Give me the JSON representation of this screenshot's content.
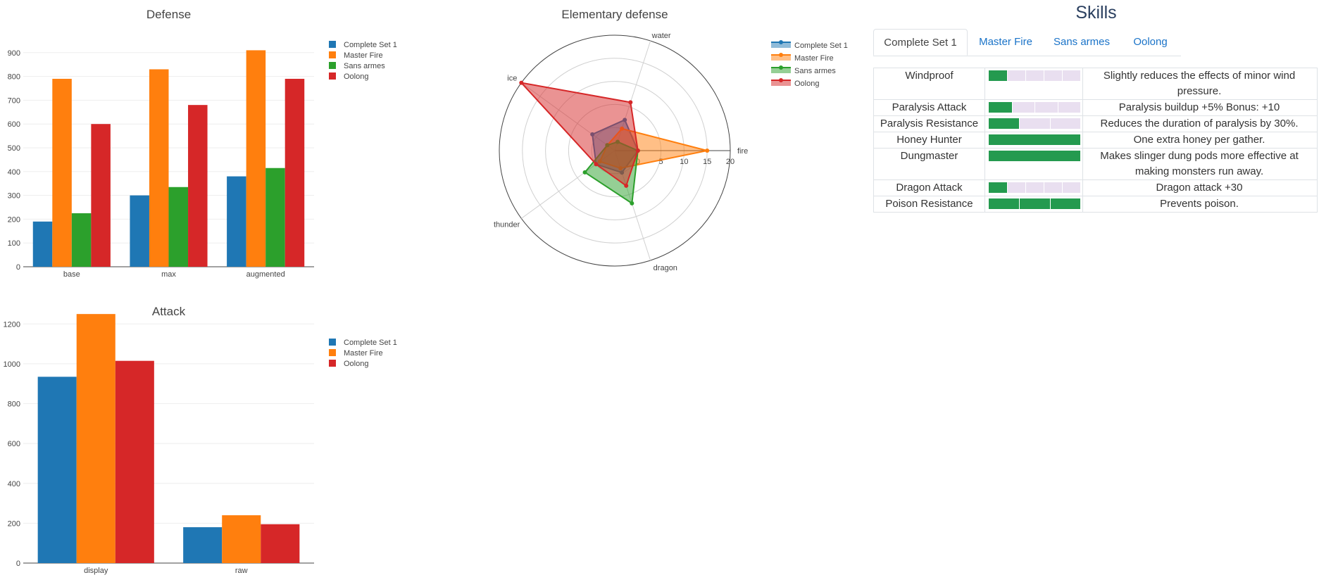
{
  "colors": {
    "Complete Set 1": "#1f77b4",
    "Master Fire": "#ff7f0e",
    "Sans armes": "#2ca02c",
    "Oolong": "#d62728",
    "skill_fill": "#249a4f",
    "skill_empty": "#e9dff0"
  },
  "chart_data": [
    {
      "type": "bar",
      "title": "Defense",
      "categories": [
        "base",
        "max",
        "augmented"
      ],
      "ylim": [
        0,
        1000
      ],
      "yticks": [
        0,
        100,
        200,
        300,
        400,
        500,
        600,
        700,
        800,
        900
      ],
      "legend_position": "top-right",
      "grid": true,
      "series": [
        {
          "name": "Complete Set 1",
          "values": [
            190,
            300,
            380
          ]
        },
        {
          "name": "Master Fire",
          "values": [
            790,
            830,
            910
          ]
        },
        {
          "name": "Sans armes",
          "values": [
            225,
            335,
            415
          ]
        },
        {
          "name": "Oolong",
          "values": [
            600,
            680,
            790
          ]
        }
      ]
    },
    {
      "type": "radar",
      "title": "Elementary defense",
      "axes": [
        "fire",
        "water",
        "ice",
        "thunder",
        "dragon"
      ],
      "rlim": [
        -5,
        20
      ],
      "rticks": [
        0,
        5,
        10,
        15,
        20
      ],
      "legend_position": "top-right",
      "series": [
        {
          "name": "Complete Set 1",
          "values": [
            0,
            2,
            1,
            0,
            0
          ]
        },
        {
          "name": "Master Fire",
          "values": [
            15,
            0,
            -3,
            -1,
            -1
          ]
        },
        {
          "name": "Sans armes",
          "values": [
            0,
            -3,
            -3,
            3,
            7
          ]
        },
        {
          "name": "Oolong",
          "values": [
            0,
            6,
            20,
            0,
            3
          ]
        }
      ]
    },
    {
      "type": "bar",
      "title": "Attack",
      "categories": [
        "display",
        "raw"
      ],
      "ylim": [
        0,
        1300
      ],
      "yticks": [
        0,
        200,
        400,
        600,
        800,
        1000,
        1200
      ],
      "legend_position": "top-right",
      "grid": true,
      "series": [
        {
          "name": "Complete Set 1",
          "values": [
            935,
            180
          ]
        },
        {
          "name": "Master Fire",
          "values": [
            1250,
            240
          ]
        },
        {
          "name": "Oolong",
          "values": [
            1015,
            195
          ]
        }
      ]
    }
  ],
  "skills": {
    "title": "Skills",
    "tabs": [
      "Complete Set 1",
      "Master Fire",
      "Sans armes",
      "Oolong"
    ],
    "active_tab": "Complete Set 1",
    "rows": [
      {
        "name": "Windproof",
        "level": 1,
        "max": 5,
        "description": "Slightly reduces the effects of minor wind pressure."
      },
      {
        "name": "Paralysis Attack",
        "level": 1,
        "max": 4,
        "description": "Paralysis buildup +5% Bonus: +10"
      },
      {
        "name": "Paralysis Resistance",
        "level": 1,
        "max": 3,
        "description": "Reduces the duration of paralysis by 30%."
      },
      {
        "name": "Honey Hunter",
        "level": 1,
        "max": 1,
        "description": "One extra honey per gather."
      },
      {
        "name": "Dungmaster",
        "level": 1,
        "max": 1,
        "description": "Makes slinger dung pods more effective at making monsters run away."
      },
      {
        "name": "Dragon Attack",
        "level": 1,
        "max": 5,
        "description": "Dragon attack +30"
      },
      {
        "name": "Poison Resistance",
        "level": 3,
        "max": 3,
        "description": "Prevents poison."
      }
    ]
  }
}
